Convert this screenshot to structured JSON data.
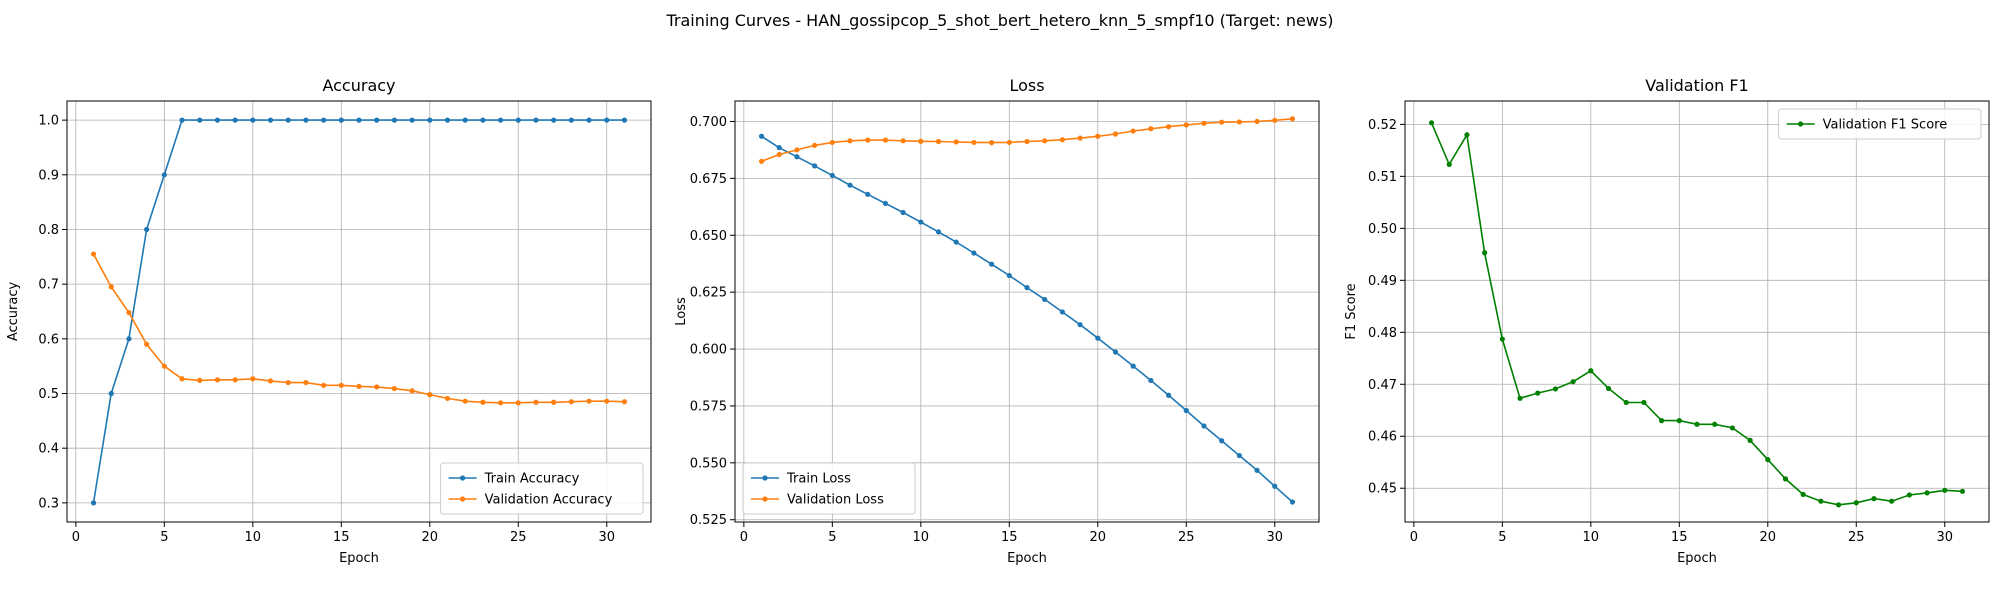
{
  "figure": {
    "title": "Training Curves - HAN_gossipcop_5_shot_bert_hetero_knn_5_smpf10 (Target: news)"
  },
  "chart_data": [
    {
      "type": "line",
      "title": "Accuracy",
      "xlabel": "Epoch",
      "ylabel": "Accuracy",
      "xlim": [
        -0.5,
        32.5
      ],
      "ylim": [
        0.265,
        1.035
      ],
      "xticks": [
        0,
        5,
        10,
        15,
        20,
        25,
        30
      ],
      "yticks": [
        0.3,
        0.4,
        0.5,
        0.6,
        0.7,
        0.8,
        0.9,
        1.0
      ],
      "ytick_labels": [
        "0.3",
        "0.4",
        "0.5",
        "0.6",
        "0.7",
        "0.8",
        "0.9",
        "1.0"
      ],
      "grid": true,
      "legend": "lower right",
      "x": [
        1,
        2,
        3,
        4,
        5,
        6,
        7,
        8,
        9,
        10,
        11,
        12,
        13,
        14,
        15,
        16,
        17,
        18,
        19,
        20,
        21,
        22,
        23,
        24,
        25,
        26,
        27,
        28,
        29,
        30,
        31
      ],
      "series": [
        {
          "name": "Train Accuracy",
          "color": "#1f77b4",
          "values": [
            0.3,
            0.5,
            0.6,
            0.8,
            0.9,
            1.0,
            1.0,
            1.0,
            1.0,
            1.0,
            1.0,
            1.0,
            1.0,
            1.0,
            1.0,
            1.0,
            1.0,
            1.0,
            1.0,
            1.0,
            1.0,
            1.0,
            1.0,
            1.0,
            1.0,
            1.0,
            1.0,
            1.0,
            1.0,
            1.0,
            1.0
          ]
        },
        {
          "name": "Validation Accuracy",
          "color": "#ff7f0e",
          "values": [
            0.755,
            0.695,
            0.648,
            0.59,
            0.55,
            0.527,
            0.524,
            0.525,
            0.525,
            0.527,
            0.523,
            0.52,
            0.52,
            0.515,
            0.515,
            0.513,
            0.512,
            0.509,
            0.505,
            0.498,
            0.491,
            0.486,
            0.484,
            0.483,
            0.483,
            0.484,
            0.484,
            0.485,
            0.486,
            0.486,
            0.485
          ]
        }
      ]
    },
    {
      "type": "line",
      "title": "Loss",
      "xlabel": "Epoch",
      "ylabel": "Loss",
      "xlim": [
        -0.5,
        32.5
      ],
      "ylim": [
        0.524,
        0.709
      ],
      "xticks": [
        0,
        5,
        10,
        15,
        20,
        25,
        30
      ],
      "yticks": [
        0.525,
        0.55,
        0.575,
        0.6,
        0.625,
        0.65,
        0.675,
        0.7
      ],
      "ytick_labels": [
        "0.525",
        "0.550",
        "0.575",
        "0.600",
        "0.625",
        "0.650",
        "0.675",
        "0.700"
      ],
      "grid": true,
      "legend": "lower left",
      "x": [
        1,
        2,
        3,
        4,
        5,
        6,
        7,
        8,
        9,
        10,
        11,
        12,
        13,
        14,
        15,
        16,
        17,
        18,
        19,
        20,
        21,
        22,
        23,
        24,
        25,
        26,
        27,
        28,
        29,
        30,
        31
      ],
      "series": [
        {
          "name": "Train Loss",
          "color": "#1f77b4",
          "values": [
            0.6935,
            0.6885,
            0.6845,
            0.6805,
            0.6763,
            0.672,
            0.668,
            0.664,
            0.66,
            0.6558,
            0.6515,
            0.647,
            0.6422,
            0.6373,
            0.6323,
            0.627,
            0.6218,
            0.6163,
            0.6107,
            0.6048,
            0.5987,
            0.5925,
            0.5862,
            0.5797,
            0.573,
            0.5662,
            0.5597,
            0.5532,
            0.5467,
            0.5397,
            0.5328
          ]
        },
        {
          "name": "Validation Loss",
          "color": "#ff7f0e",
          "values": [
            0.6825,
            0.6855,
            0.6875,
            0.6895,
            0.6908,
            0.6915,
            0.6918,
            0.6918,
            0.6915,
            0.6913,
            0.6912,
            0.691,
            0.6908,
            0.6907,
            0.6908,
            0.6912,
            0.6915,
            0.692,
            0.6927,
            0.6935,
            0.6945,
            0.6958,
            0.6968,
            0.6977,
            0.6985,
            0.6992,
            0.6997,
            0.6998,
            0.7,
            0.7005,
            0.7012
          ]
        }
      ]
    },
    {
      "type": "line",
      "title": "Validation F1",
      "xlabel": "Epoch",
      "ylabel": "F1 Score",
      "xlim": [
        -0.5,
        32.5
      ],
      "ylim": [
        0.4435,
        0.5245
      ],
      "xticks": [
        0,
        5,
        10,
        15,
        20,
        25,
        30
      ],
      "yticks": [
        0.45,
        0.46,
        0.47,
        0.48,
        0.49,
        0.5,
        0.51,
        0.52
      ],
      "ytick_labels": [
        "0.45",
        "0.46",
        "0.47",
        "0.48",
        "0.49",
        "0.50",
        "0.51",
        "0.52"
      ],
      "grid": true,
      "legend": "upper right",
      "x": [
        1,
        2,
        3,
        4,
        5,
        6,
        7,
        8,
        9,
        10,
        11,
        12,
        13,
        14,
        15,
        16,
        17,
        18,
        19,
        20,
        21,
        22,
        23,
        24,
        25,
        26,
        27,
        28,
        29,
        30,
        31
      ],
      "series": [
        {
          "name": "Validation F1 Score",
          "color": "#008000",
          "values": [
            0.5203,
            0.5123,
            0.518,
            0.4953,
            0.4787,
            0.4673,
            0.4683,
            0.4691,
            0.4705,
            0.4726,
            0.4692,
            0.4665,
            0.4665,
            0.463,
            0.463,
            0.4623,
            0.4623,
            0.4616,
            0.4592,
            0.4555,
            0.4518,
            0.4488,
            0.4475,
            0.4468,
            0.4472,
            0.448,
            0.4475,
            0.4487,
            0.4491,
            0.4496,
            0.4494
          ]
        }
      ]
    }
  ]
}
